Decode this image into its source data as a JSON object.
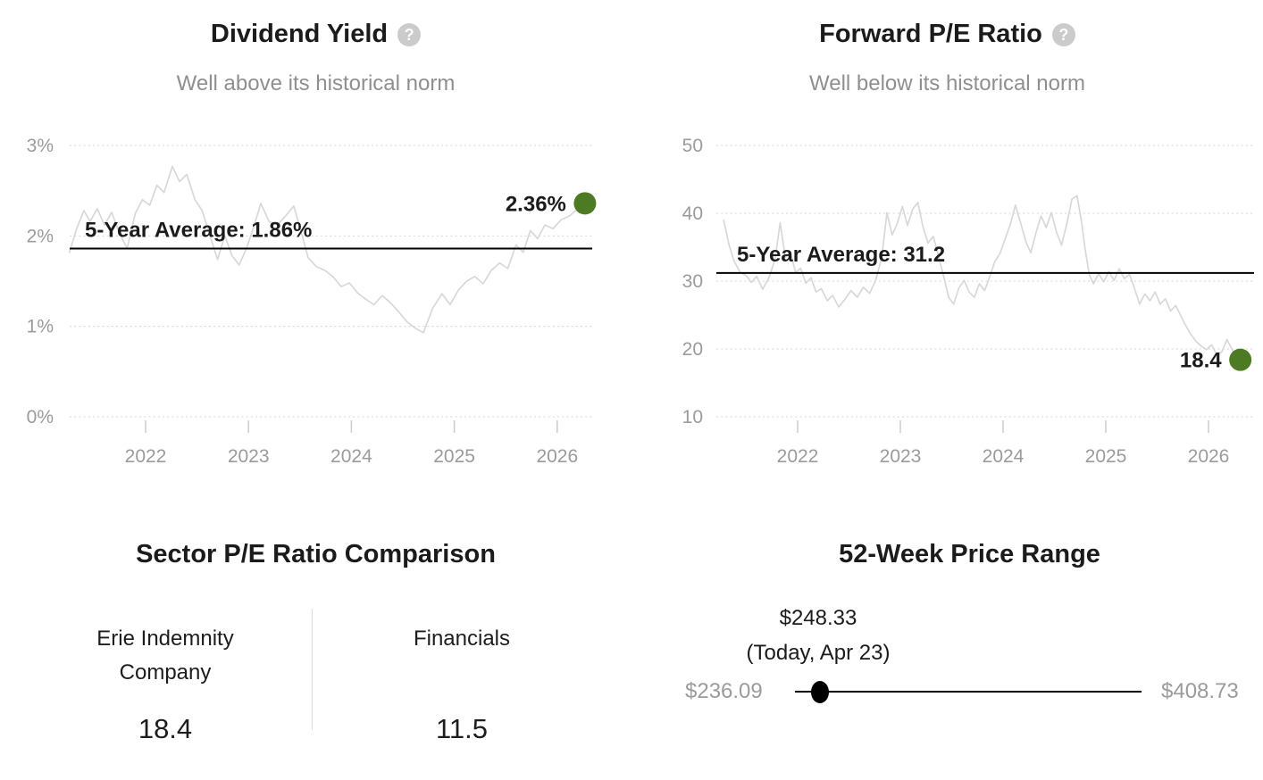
{
  "colors": {
    "accent_green": "#4d7b23",
    "series_line": "#d8d8d8",
    "average_line": "#000000",
    "grid_line": "#d5d5d5",
    "axis_text": "#9b9b9b",
    "dark_text": "#1b1b1b",
    "subtitle_text": "#8f8f8f"
  },
  "chart_data": [
    {
      "type": "line",
      "title": "Dividend Yield",
      "help_icon": "?",
      "subtitle": "Well above its historical norm",
      "legend": "none",
      "grid": "horizontal-dotted",
      "ylim": [
        0,
        3
      ],
      "xlim": [
        2021.25,
        2026.4
      ],
      "y_ticks": [
        {
          "label": "3%",
          "value": 3
        },
        {
          "label": "2%",
          "value": 2
        },
        {
          "label": "1%",
          "value": 1
        },
        {
          "label": "0%",
          "value": 0
        }
      ],
      "x_ticks": [
        {
          "label": "2022",
          "value": 2022
        },
        {
          "label": "2023",
          "value": 2023
        },
        {
          "label": "2024",
          "value": 2024
        },
        {
          "label": "2025",
          "value": 2025
        },
        {
          "label": "2026",
          "value": 2026
        }
      ],
      "average": {
        "label": "5-Year Average: 1.86%",
        "value": 1.86
      },
      "current": {
        "label": "2.36%",
        "value": 2.36,
        "year": 2026.27
      },
      "series": [
        {
          "name": "Dividend Yield",
          "points": [
            [
              2021.26,
              1.82
            ],
            [
              2021.33,
              2.08
            ],
            [
              2021.4,
              2.28
            ],
            [
              2021.46,
              2.16
            ],
            [
              2021.53,
              2.3
            ],
            [
              2021.6,
              2.12
            ],
            [
              2021.67,
              2.26
            ],
            [
              2021.74,
              2.05
            ],
            [
              2021.82,
              1.86
            ],
            [
              2021.9,
              2.25
            ],
            [
              2021.97,
              2.4
            ],
            [
              2022.04,
              2.34
            ],
            [
              2022.11,
              2.56
            ],
            [
              2022.18,
              2.48
            ],
            [
              2022.26,
              2.77
            ],
            [
              2022.33,
              2.6
            ],
            [
              2022.4,
              2.68
            ],
            [
              2022.48,
              2.4
            ],
            [
              2022.55,
              2.28
            ],
            [
              2022.62,
              2.02
            ],
            [
              2022.7,
              1.74
            ],
            [
              2022.77,
              2.0
            ],
            [
              2022.84,
              1.78
            ],
            [
              2022.91,
              1.68
            ],
            [
              2022.98,
              1.86
            ],
            [
              2023.05,
              2.1
            ],
            [
              2023.12,
              2.36
            ],
            [
              2023.2,
              2.16
            ],
            [
              2023.28,
              2.12
            ],
            [
              2023.36,
              2.22
            ],
            [
              2023.44,
              2.33
            ],
            [
              2023.51,
              2.05
            ],
            [
              2023.58,
              1.76
            ],
            [
              2023.66,
              1.66
            ],
            [
              2023.74,
              1.62
            ],
            [
              2023.82,
              1.55
            ],
            [
              2023.9,
              1.44
            ],
            [
              2023.98,
              1.48
            ],
            [
              2024.06,
              1.37
            ],
            [
              2024.14,
              1.3
            ],
            [
              2024.22,
              1.24
            ],
            [
              2024.3,
              1.34
            ],
            [
              2024.38,
              1.26
            ],
            [
              2024.46,
              1.16
            ],
            [
              2024.54,
              1.05
            ],
            [
              2024.62,
              0.98
            ],
            [
              2024.7,
              0.93
            ],
            [
              2024.79,
              1.2
            ],
            [
              2024.88,
              1.36
            ],
            [
              2024.96,
              1.24
            ],
            [
              2025.04,
              1.4
            ],
            [
              2025.12,
              1.5
            ],
            [
              2025.2,
              1.55
            ],
            [
              2025.28,
              1.47
            ],
            [
              2025.36,
              1.62
            ],
            [
              2025.44,
              1.7
            ],
            [
              2025.52,
              1.64
            ],
            [
              2025.6,
              1.9
            ],
            [
              2025.67,
              1.82
            ],
            [
              2025.74,
              2.06
            ],
            [
              2025.81,
              1.97
            ],
            [
              2025.88,
              2.12
            ],
            [
              2025.96,
              2.08
            ],
            [
              2026.04,
              2.18
            ],
            [
              2026.12,
              2.22
            ],
            [
              2026.2,
              2.3
            ],
            [
              2026.27,
              2.36
            ]
          ]
        }
      ]
    },
    {
      "type": "line",
      "title": "Forward P/E Ratio",
      "help_icon": "?",
      "subtitle": "Well below its historical norm",
      "legend": "none",
      "grid": "horizontal-dotted",
      "ylim": [
        10,
        50
      ],
      "xlim": [
        2021.25,
        2026.4
      ],
      "y_ticks": [
        {
          "label": "50",
          "value": 50
        },
        {
          "label": "40",
          "value": 40
        },
        {
          "label": "30",
          "value": 30
        },
        {
          "label": "20",
          "value": 20
        },
        {
          "label": "10",
          "value": 10
        }
      ],
      "x_ticks": [
        {
          "label": "2022",
          "value": 2022
        },
        {
          "label": "2023",
          "value": 2023
        },
        {
          "label": "2024",
          "value": 2024
        },
        {
          "label": "2025",
          "value": 2025
        },
        {
          "label": "2026",
          "value": 2026
        }
      ],
      "average": {
        "label": "5-Year Average: 31.2",
        "value": 31.2
      },
      "current": {
        "label": "18.4",
        "value": 18.4,
        "year": 2026.31
      },
      "series": [
        {
          "name": "Forward P/E Ratio",
          "points": [
            [
              2021.28,
              39.0
            ],
            [
              2021.33,
              35.5
            ],
            [
              2021.38,
              33.0
            ],
            [
              2021.44,
              31.3
            ],
            [
              2021.5,
              30.8
            ],
            [
              2021.55,
              29.8
            ],
            [
              2021.6,
              30.7
            ],
            [
              2021.66,
              28.8
            ],
            [
              2021.72,
              30.5
            ],
            [
              2021.78,
              33.2
            ],
            [
              2021.83,
              38.6
            ],
            [
              2021.88,
              33.5
            ],
            [
              2021.93,
              34.2
            ],
            [
              2021.98,
              31.3
            ],
            [
              2022.03,
              31.9
            ],
            [
              2022.08,
              29.7
            ],
            [
              2022.13,
              30.5
            ],
            [
              2022.18,
              28.4
            ],
            [
              2022.23,
              28.9
            ],
            [
              2022.29,
              27.1
            ],
            [
              2022.34,
              27.9
            ],
            [
              2022.4,
              26.2
            ],
            [
              2022.46,
              27.3
            ],
            [
              2022.52,
              28.6
            ],
            [
              2022.58,
              27.6
            ],
            [
              2022.64,
              29.1
            ],
            [
              2022.7,
              28.2
            ],
            [
              2022.76,
              30.1
            ],
            [
              2022.82,
              33.6
            ],
            [
              2022.87,
              40.1
            ],
            [
              2022.92,
              36.8
            ],
            [
              2022.97,
              38.5
            ],
            [
              2023.02,
              41.0
            ],
            [
              2023.07,
              38.2
            ],
            [
              2023.12,
              40.6
            ],
            [
              2023.17,
              41.6
            ],
            [
              2023.22,
              38.0
            ],
            [
              2023.27,
              35.6
            ],
            [
              2023.32,
              36.6
            ],
            [
              2023.37,
              33.8
            ],
            [
              2023.42,
              30.8
            ],
            [
              2023.47,
              27.6
            ],
            [
              2023.52,
              26.6
            ],
            [
              2023.57,
              29.0
            ],
            [
              2023.62,
              30.1
            ],
            [
              2023.67,
              28.4
            ],
            [
              2023.72,
              27.6
            ],
            [
              2023.77,
              29.6
            ],
            [
              2023.82,
              28.6
            ],
            [
              2023.87,
              30.6
            ],
            [
              2023.92,
              32.9
            ],
            [
              2023.97,
              34.1
            ],
            [
              2024.02,
              36.2
            ],
            [
              2024.07,
              38.3
            ],
            [
              2024.12,
              41.2
            ],
            [
              2024.17,
              38.6
            ],
            [
              2024.22,
              35.9
            ],
            [
              2024.27,
              34.2
            ],
            [
              2024.32,
              37.1
            ],
            [
              2024.37,
              39.6
            ],
            [
              2024.42,
              37.9
            ],
            [
              2024.47,
              40.1
            ],
            [
              2024.52,
              37.2
            ],
            [
              2024.57,
              35.3
            ],
            [
              2024.62,
              38.4
            ],
            [
              2024.67,
              42.1
            ],
            [
              2024.72,
              42.6
            ],
            [
              2024.76,
              39.1
            ],
            [
              2024.8,
              34.6
            ],
            [
              2024.84,
              30.9
            ],
            [
              2024.88,
              29.6
            ],
            [
              2024.93,
              31.1
            ],
            [
              2024.98,
              29.9
            ],
            [
              2025.03,
              31.4
            ],
            [
              2025.08,
              30.1
            ],
            [
              2025.13,
              31.8
            ],
            [
              2025.18,
              30.4
            ],
            [
              2025.23,
              31.0
            ],
            [
              2025.28,
              28.9
            ],
            [
              2025.33,
              26.6
            ],
            [
              2025.38,
              28.1
            ],
            [
              2025.43,
              27.1
            ],
            [
              2025.48,
              28.4
            ],
            [
              2025.53,
              26.6
            ],
            [
              2025.58,
              27.4
            ],
            [
              2025.63,
              25.6
            ],
            [
              2025.68,
              26.4
            ],
            [
              2025.73,
              24.9
            ],
            [
              2025.78,
              23.4
            ],
            [
              2025.83,
              22.1
            ],
            [
              2025.88,
              21.1
            ],
            [
              2025.93,
              20.4
            ],
            [
              2025.98,
              19.9
            ],
            [
              2026.03,
              20.6
            ],
            [
              2026.08,
              19.1
            ],
            [
              2026.13,
              19.6
            ],
            [
              2026.18,
              21.4
            ],
            [
              2026.23,
              19.9
            ],
            [
              2026.28,
              18.1
            ],
            [
              2026.31,
              18.4
            ]
          ]
        }
      ]
    }
  ],
  "sector_comparison": {
    "title": "Sector P/E Ratio Comparison",
    "items": [
      {
        "name": "Erie Indemnity Company",
        "value": "18.4"
      },
      {
        "name": "Financials",
        "value": "11.5"
      }
    ]
  },
  "price_range": {
    "title": "52-Week Price Range",
    "current_price": "$248.33",
    "current_date": "(Today, Apr 23)",
    "low_label": "$236.09",
    "high_label": "$408.73",
    "low_value": 236.09,
    "high_value": 408.73,
    "current_value": 248.33
  }
}
